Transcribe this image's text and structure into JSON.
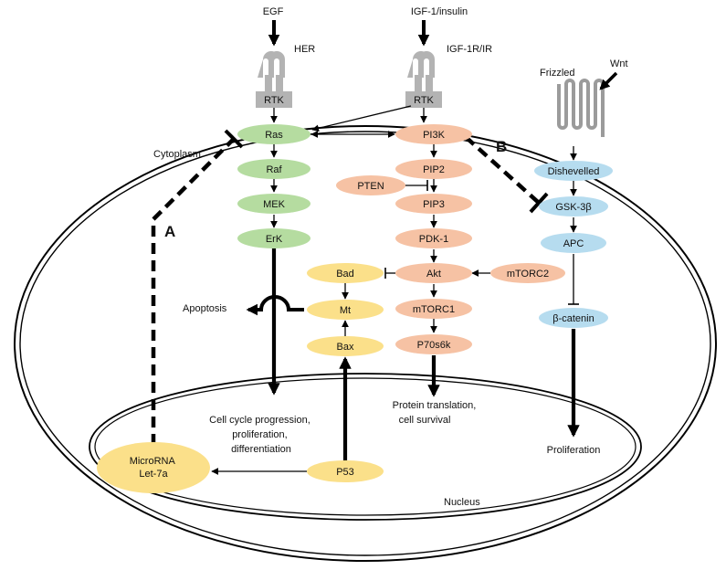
{
  "colors": {
    "green": "#b5dca0",
    "salmon": "#f6c2a4",
    "blue": "#b6dcef",
    "yellow": "#fbe08a",
    "receptor": "#b3b3b3",
    "line": "#000000"
  },
  "nodes": {
    "ras": "Ras",
    "raf": "Raf",
    "mek": "MEK",
    "erk": "ErK",
    "pi3k": "PI3K",
    "pip2": "PIP2",
    "pten": "PTEN",
    "pip3": "PIP3",
    "pdk1": "PDK-1",
    "akt": "Akt",
    "mtorc2": "mTORC2",
    "mtorc1": "mTORC1",
    "p70s6k": "P70s6k",
    "bad": "Bad",
    "mt": "Mt",
    "bax": "Bax",
    "p53": "P53",
    "microrna_line1": "MicroRNA",
    "microrna_line2": "Let-7a",
    "dishevelled": "Dishevelled",
    "gsk3b": "GSK-3β",
    "apc": "APC",
    "beta_catenin": "β-catenin"
  },
  "receptors": {
    "rtk_left": "RTK",
    "rtk_right": "RTK",
    "her": "HER",
    "igf1r": "IGF-1R/IR",
    "frizzled": "Frizzled"
  },
  "ligands": {
    "egf": "EGF",
    "igf": "IGF-1/insulin",
    "wnt": "Wnt"
  },
  "labels": {
    "cytoplasm": "Cytoplasm",
    "nucleus": "Nucleus",
    "apoptosis": "Apoptosis",
    "cell_cycle": [
      "Cell cycle progression,",
      "proliferation,",
      "differentiation"
    ],
    "protein_translation": [
      "Protein translation,",
      "cell survival"
    ],
    "proliferation": "Proliferation",
    "inhibition_a": "A",
    "inhibition_b": "B"
  }
}
